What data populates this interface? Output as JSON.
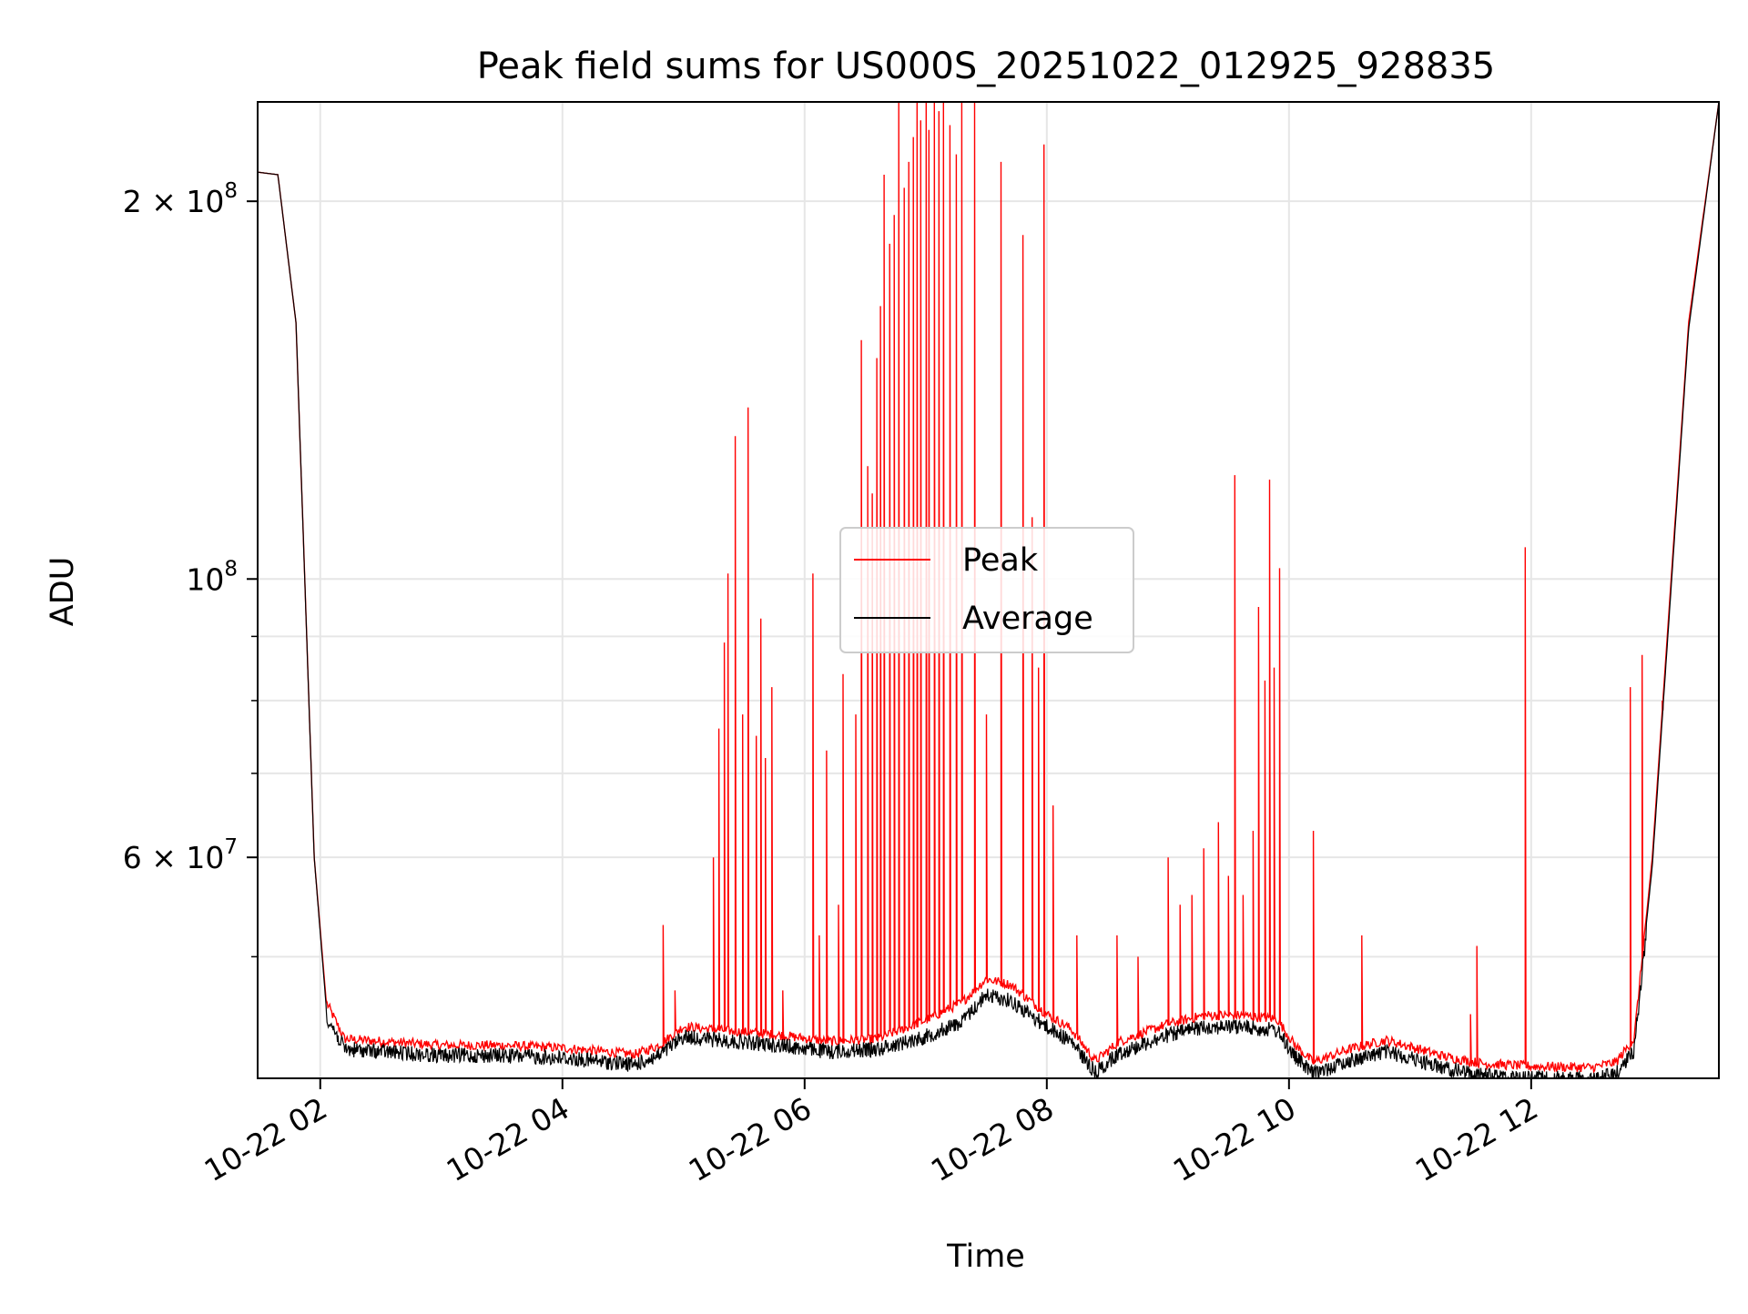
{
  "chart_data": {
    "type": "line",
    "title": "Peak field sums for US000S_20251022_012925_928835",
    "xlabel": "Time",
    "ylabel": "ADU",
    "yscale": "log",
    "xlim_hours": [
      1.483,
      13.55
    ],
    "ylim": [
      40000000,
      240000000
    ],
    "grid": true,
    "legend_position": "center",
    "x_ticks": [
      {
        "value": 2,
        "label": "10-22 02"
      },
      {
        "value": 4,
        "label": "10-22 04"
      },
      {
        "value": 6,
        "label": "10-22 06"
      },
      {
        "value": 8,
        "label": "10-22 08"
      },
      {
        "value": 10,
        "label": "10-22 10"
      },
      {
        "value": 12,
        "label": "10-22 12"
      }
    ],
    "y_major_ticks": [
      {
        "value": 200000000,
        "base": "2 × 10",
        "exp": "8"
      },
      {
        "value": 100000000,
        "base": "10",
        "exp": "8"
      },
      {
        "value": 60000000,
        "base": "6 × 10",
        "exp": "7"
      }
    ],
    "y_minor_ticks": [
      50000000,
      70000000,
      80000000,
      90000000
    ],
    "series": [
      {
        "name": "Peak",
        "color": "#ff0000",
        "baseline_hours": [
          1.48,
          1.65,
          1.8,
          1.95,
          2.05,
          2.2,
          3.0,
          3.5,
          4.0,
          4.6,
          4.8,
          5.0,
          5.3,
          5.8,
          6.2,
          6.6,
          7.0,
          7.3,
          7.5,
          7.7,
          8.0,
          8.2,
          8.4,
          8.6,
          8.8,
          9.0,
          9.3,
          9.6,
          9.9,
          10.05,
          10.2,
          10.5,
          10.8,
          11.0,
          11.3,
          11.6,
          12.0,
          12.5,
          12.7,
          12.85,
          13.0,
          13.3,
          13.55
        ],
        "baseline_values": [
          211000000,
          210000000,
          160000000,
          60000000,
          46000000,
          43000000,
          42500000,
          42500000,
          42300000,
          41800000,
          42500000,
          44000000,
          43700000,
          43300000,
          42800000,
          43000000,
          44500000,
          46000000,
          48000000,
          47500000,
          45000000,
          43800000,
          41300000,
          42800000,
          43500000,
          44200000,
          44900000,
          44900000,
          44600000,
          42500000,
          41200000,
          42200000,
          42900000,
          42400000,
          41600000,
          41100000,
          40900000,
          40800000,
          41200000,
          43000000,
          60000000,
          160000000,
          240000000
        ],
        "spikes": [
          {
            "x": 4.83,
            "y": 53000000
          },
          {
            "x": 4.93,
            "y": 47000000
          },
          {
            "x": 5.25,
            "y": 60000000
          },
          {
            "x": 5.29,
            "y": 76000000
          },
          {
            "x": 5.34,
            "y": 89000000
          },
          {
            "x": 5.37,
            "y": 101000000
          },
          {
            "x": 5.43,
            "y": 130000000
          },
          {
            "x": 5.49,
            "y": 78000000
          },
          {
            "x": 5.53,
            "y": 137000000
          },
          {
            "x": 5.6,
            "y": 75000000
          },
          {
            "x": 5.64,
            "y": 93000000
          },
          {
            "x": 5.68,
            "y": 72000000
          },
          {
            "x": 5.73,
            "y": 82000000
          },
          {
            "x": 5.82,
            "y": 47000000
          },
          {
            "x": 6.07,
            "y": 101000000
          },
          {
            "x": 6.12,
            "y": 52000000
          },
          {
            "x": 6.18,
            "y": 73000000
          },
          {
            "x": 6.28,
            "y": 55000000
          },
          {
            "x": 6.32,
            "y": 84000000
          },
          {
            "x": 6.42,
            "y": 78000000
          },
          {
            "x": 6.47,
            "y": 155000000
          },
          {
            "x": 6.52,
            "y": 123000000
          },
          {
            "x": 6.56,
            "y": 117000000
          },
          {
            "x": 6.6,
            "y": 150000000
          },
          {
            "x": 6.63,
            "y": 165000000
          },
          {
            "x": 6.66,
            "y": 210000000
          },
          {
            "x": 6.7,
            "y": 185000000
          },
          {
            "x": 6.74,
            "y": 195000000
          },
          {
            "x": 6.78,
            "y": 240000000
          },
          {
            "x": 6.82,
            "y": 205000000
          },
          {
            "x": 6.86,
            "y": 215000000
          },
          {
            "x": 6.9,
            "y": 225000000
          },
          {
            "x": 6.93,
            "y": 240000000
          },
          {
            "x": 6.96,
            "y": 232000000
          },
          {
            "x": 7.0,
            "y": 240000000
          },
          {
            "x": 7.03,
            "y": 228000000
          },
          {
            "x": 7.07,
            "y": 240000000
          },
          {
            "x": 7.11,
            "y": 236000000
          },
          {
            "x": 7.15,
            "y": 240000000
          },
          {
            "x": 7.2,
            "y": 230000000
          },
          {
            "x": 7.25,
            "y": 218000000
          },
          {
            "x": 7.3,
            "y": 240000000
          },
          {
            "x": 7.4,
            "y": 240000000
          },
          {
            "x": 7.5,
            "y": 78000000
          },
          {
            "x": 7.62,
            "y": 215000000
          },
          {
            "x": 7.8,
            "y": 188000000
          },
          {
            "x": 7.88,
            "y": 112000000
          },
          {
            "x": 7.93,
            "y": 85000000
          },
          {
            "x": 7.98,
            "y": 222000000
          },
          {
            "x": 8.05,
            "y": 66000000
          },
          {
            "x": 8.25,
            "y": 52000000
          },
          {
            "x": 8.58,
            "y": 52000000
          },
          {
            "x": 8.75,
            "y": 50000000
          },
          {
            "x": 9.0,
            "y": 60000000
          },
          {
            "x": 9.1,
            "y": 55000000
          },
          {
            "x": 9.2,
            "y": 56000000
          },
          {
            "x": 9.3,
            "y": 61000000
          },
          {
            "x": 9.42,
            "y": 64000000
          },
          {
            "x": 9.5,
            "y": 58000000
          },
          {
            "x": 9.55,
            "y": 121000000
          },
          {
            "x": 9.62,
            "y": 56000000
          },
          {
            "x": 9.7,
            "y": 63000000
          },
          {
            "x": 9.75,
            "y": 95000000
          },
          {
            "x": 9.8,
            "y": 83000000
          },
          {
            "x": 9.84,
            "y": 120000000
          },
          {
            "x": 9.88,
            "y": 85000000
          },
          {
            "x": 9.92,
            "y": 102000000
          },
          {
            "x": 10.2,
            "y": 63000000
          },
          {
            "x": 10.6,
            "y": 52000000
          },
          {
            "x": 11.5,
            "y": 45000000
          },
          {
            "x": 11.55,
            "y": 51000000
          },
          {
            "x": 11.95,
            "y": 106000000
          },
          {
            "x": 12.82,
            "y": 82000000
          },
          {
            "x": 12.92,
            "y": 87000000
          },
          {
            "x": 13.08,
            "y": 80000000
          }
        ]
      },
      {
        "name": "Average",
        "color": "#000000",
        "baseline_hours": [
          1.48,
          1.65,
          1.8,
          1.95,
          2.05,
          2.2,
          3.0,
          3.5,
          4.0,
          4.6,
          4.8,
          5.0,
          5.3,
          5.8,
          6.2,
          6.6,
          7.0,
          7.3,
          7.5,
          7.7,
          8.0,
          8.2,
          8.4,
          8.6,
          8.8,
          9.0,
          9.3,
          9.6,
          9.9,
          10.05,
          10.2,
          10.5,
          10.8,
          11.0,
          11.3,
          11.6,
          12.0,
          12.5,
          12.7,
          12.85,
          13.0,
          13.3,
          13.55
        ],
        "baseline_values": [
          211000000,
          210000000,
          160000000,
          60000000,
          45500000,
          42800000,
          42300000,
          42300000,
          42100000,
          41600000,
          42300000,
          43800000,
          43500000,
          43100000,
          42600000,
          42800000,
          43800000,
          45000000,
          47300000,
          46800000,
          44600000,
          43400000,
          41000000,
          42500000,
          43200000,
          43900000,
          44600000,
          44600000,
          44300000,
          42200000,
          40900000,
          41900000,
          42600000,
          42100000,
          41300000,
          40800000,
          40600000,
          40500000,
          40900000,
          42700000,
          59000000,
          158000000,
          240000000
        ]
      }
    ]
  }
}
